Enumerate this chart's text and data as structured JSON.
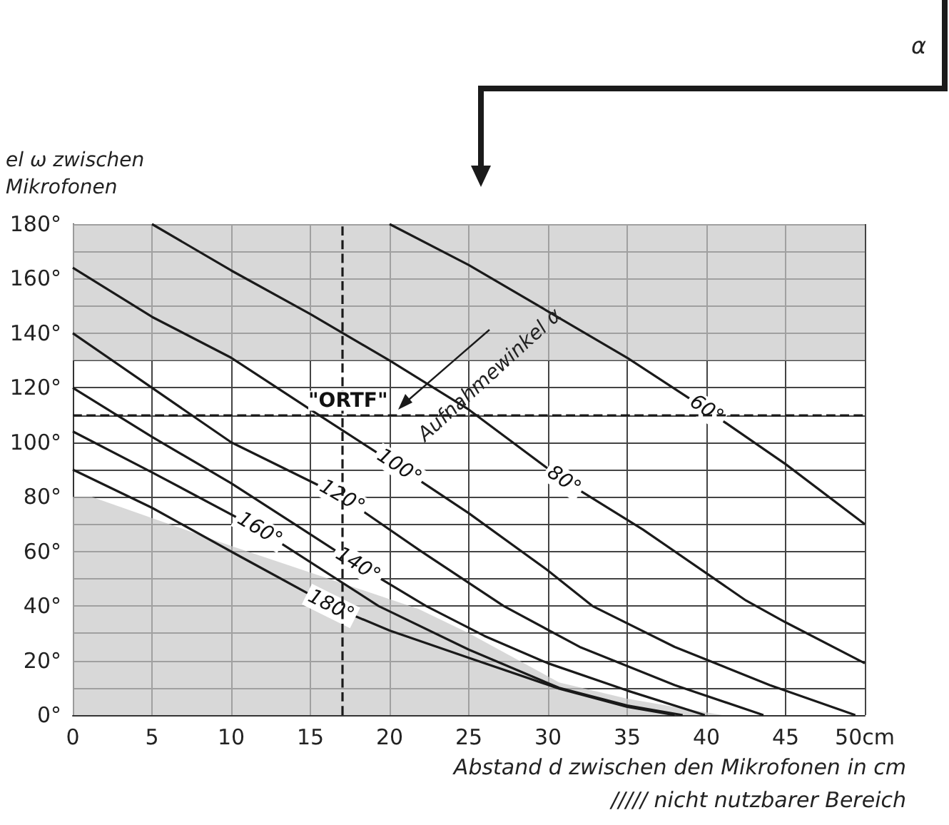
{
  "chart_data": {
    "type": "line",
    "ylabel": "el ω zwischen\nMikrofonen",
    "xlabel": "Abstand d zwischen den Mikrofonen in cm",
    "annotations": [
      "Aufnahmewinkel α",
      "α",
      "///// nicht nutzbarer Bereich"
    ],
    "xlim": [
      0,
      50
    ],
    "xticks": [
      0,
      5,
      10,
      15,
      20,
      25,
      30,
      35,
      40,
      45,
      {
        "value": 50,
        "label": "50cm"
      }
    ],
    "ylim": [
      0,
      180
    ],
    "yticks": [
      {
        "value": 0,
        "label": "0°"
      },
      {
        "value": 10,
        "label": null
      },
      {
        "value": 20,
        "label": "20°"
      },
      {
        "value": 30,
        "label": null
      },
      {
        "value": 40,
        "label": "40°"
      },
      {
        "value": 50,
        "label": null
      },
      {
        "value": 60,
        "label": "60°"
      },
      {
        "value": 70,
        "label": null
      },
      {
        "value": 80,
        "label": "80°"
      },
      {
        "value": 90,
        "label": null
      },
      {
        "value": 100,
        "label": "100°"
      },
      {
        "value": 110,
        "label": null
      },
      {
        "value": 120,
        "label": "120°"
      },
      {
        "value": 130,
        "label": null
      },
      {
        "value": 140,
        "label": "140°"
      },
      {
        "value": 150,
        "label": null
      },
      {
        "value": 160,
        "label": "160°"
      },
      {
        "value": 170,
        "label": null
      },
      {
        "value": 180,
        "label": "180°"
      }
    ],
    "grid": true,
    "legend": false,
    "marker": "none",
    "line_style": "solid",
    "bands": [
      {
        "axis": "y",
        "from": 130,
        "to": 180,
        "color": "#c8c8c8"
      }
    ],
    "ref_lines": [
      {
        "axis": "y",
        "value": 110,
        "label": "\"ORTF\"",
        "line_style": "dashed",
        "color": "#1a1a1a"
      },
      {
        "axis": "x",
        "value": 17,
        "line_style": "dashed",
        "color": "#1a1a1a"
      }
    ],
    "series": [
      {
        "type": "area",
        "color": "#c8c8c8",
        "x": [
          0,
          1.2,
          10,
          21.8,
          25,
          30.7,
          35,
          41
        ],
        "values": [
          80,
          80,
          62,
          39,
          30,
          12,
          6,
          0
        ]
      },
      {
        "name": "60°",
        "color": "#1a1a1a",
        "x": [
          20,
          25,
          30,
          35,
          40,
          45,
          50
        ],
        "values": [
          180,
          165,
          148,
          131,
          112,
          92,
          70
        ]
      },
      {
        "name": "80°",
        "color": "#1a1a1a",
        "x": [
          5,
          10,
          15,
          20,
          25,
          31,
          36,
          42.5,
          45,
          50
        ],
        "values": [
          180,
          163,
          147,
          130,
          112,
          86,
          68,
          42,
          34,
          19
        ]
      },
      {
        "name": "100°",
        "color": "#1a1a1a",
        "x": [
          0,
          5,
          10,
          15,
          20.6,
          25,
          30,
          32.8,
          38,
          44,
          49.4
        ],
        "values": [
          164,
          146,
          131,
          112,
          91,
          74,
          53,
          40,
          25,
          11,
          0
        ]
      },
      {
        "name": "120°",
        "color": "#1a1a1a",
        "x": [
          0,
          5,
          10,
          17,
          22,
          27.2,
          32,
          38,
          43.6
        ],
        "values": [
          140,
          120,
          100,
          80,
          60,
          40,
          25,
          11,
          0
        ]
      },
      {
        "name": "140°",
        "color": "#1a1a1a",
        "x": [
          0,
          5,
          10,
          14,
          18,
          22.3,
          26,
          30,
          35,
          39.9
        ],
        "values": [
          120,
          102,
          85,
          70,
          55,
          40,
          29,
          19,
          9,
          0
        ]
      },
      {
        "name": "160°",
        "color": "#1a1a1a",
        "x": [
          0,
          5,
          11.8,
          19.3,
          25,
          30.7,
          35,
          38.5
        ],
        "values": [
          104,
          89,
          68,
          40,
          24,
          10,
          3.5,
          0
        ]
      },
      {
        "name": "180°",
        "color": "#1a1a1a",
        "x": [
          0,
          5,
          10.3,
          16.3,
          20,
          25,
          30.7,
          35,
          38
        ],
        "values": [
          90,
          76,
          59,
          40,
          31,
          21,
          9.7,
          3,
          0
        ]
      }
    ]
  }
}
